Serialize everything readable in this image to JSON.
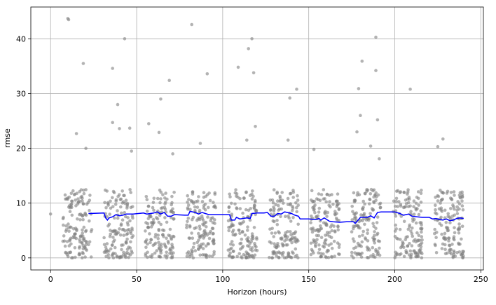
{
  "chart_data": {
    "type": "scatter",
    "title": "",
    "xlabel": "Horizon (hours)",
    "ylabel": "rmse",
    "xlim": [
      -11.5,
      251.5
    ],
    "ylim": [
      -2.2,
      45.8
    ],
    "xticks": [
      0,
      50,
      100,
      150,
      200,
      250
    ],
    "yticks": [
      0,
      10,
      20,
      30,
      40
    ],
    "grid": true,
    "point_color": "#808080",
    "line_color": "#0000ff",
    "outliers": [
      {
        "x": 0,
        "y": 8.0
      },
      {
        "x": 10,
        "y": 43.7
      },
      {
        "x": 10.5,
        "y": 43.5
      },
      {
        "x": 15,
        "y": 22.7
      },
      {
        "x": 19,
        "y": 35.5
      },
      {
        "x": 20.5,
        "y": 20.0
      },
      {
        "x": 36,
        "y": 34.6
      },
      {
        "x": 36,
        "y": 24.7
      },
      {
        "x": 39,
        "y": 28.0
      },
      {
        "x": 40,
        "y": 23.6
      },
      {
        "x": 43,
        "y": 40.0
      },
      {
        "x": 46,
        "y": 23.7
      },
      {
        "x": 47,
        "y": 19.5
      },
      {
        "x": 57,
        "y": 24.5
      },
      {
        "x": 63,
        "y": 22.9
      },
      {
        "x": 64,
        "y": 29.0
      },
      {
        "x": 69,
        "y": 32.4
      },
      {
        "x": 71,
        "y": 19.0
      },
      {
        "x": 82,
        "y": 42.6
      },
      {
        "x": 87,
        "y": 20.9
      },
      {
        "x": 91,
        "y": 33.6
      },
      {
        "x": 109,
        "y": 34.8
      },
      {
        "x": 114,
        "y": 21.5
      },
      {
        "x": 115,
        "y": 38.2
      },
      {
        "x": 117,
        "y": 40.0
      },
      {
        "x": 118,
        "y": 33.8
      },
      {
        "x": 119,
        "y": 24.0
      },
      {
        "x": 138,
        "y": 21.5
      },
      {
        "x": 139,
        "y": 29.2
      },
      {
        "x": 143,
        "y": 30.8
      },
      {
        "x": 153,
        "y": 19.8
      },
      {
        "x": 178,
        "y": 23.0
      },
      {
        "x": 179,
        "y": 30.9
      },
      {
        "x": 180,
        "y": 26.0
      },
      {
        "x": 181,
        "y": 35.9
      },
      {
        "x": 186,
        "y": 20.4
      },
      {
        "x": 189,
        "y": 40.3
      },
      {
        "x": 189,
        "y": 34.2
      },
      {
        "x": 190,
        "y": 25.2
      },
      {
        "x": 191,
        "y": 18.1
      },
      {
        "x": 209,
        "y": 30.8
      },
      {
        "x": 225,
        "y": 20.3
      },
      {
        "x": 228,
        "y": 21.7
      }
    ],
    "blocks": [
      {
        "x_start": 7,
        "x_end": 24,
        "y_max": 12.5,
        "count": 140
      },
      {
        "x_start": 31,
        "x_end": 48,
        "y_max": 12.5,
        "count": 140
      },
      {
        "x_start": 55,
        "x_end": 72,
        "y_max": 12.5,
        "count": 140
      },
      {
        "x_start": 79,
        "x_end": 96,
        "y_max": 12.5,
        "count": 140
      },
      {
        "x_start": 103,
        "x_end": 120,
        "y_max": 12.5,
        "count": 140
      },
      {
        "x_start": 127,
        "x_end": 144,
        "y_max": 12.5,
        "count": 140
      },
      {
        "x_start": 151,
        "x_end": 168,
        "y_max": 12.5,
        "count": 140
      },
      {
        "x_start": 175,
        "x_end": 192,
        "y_max": 12.5,
        "count": 140
      },
      {
        "x_start": 199,
        "x_end": 216,
        "y_max": 12.5,
        "count": 140
      },
      {
        "x_start": 223,
        "x_end": 240,
        "y_max": 12.5,
        "count": 140
      }
    ],
    "rmse_line": [
      [
        22,
        8.1
      ],
      [
        31,
        8.2
      ],
      [
        32,
        7.3
      ],
      [
        33,
        6.9
      ],
      [
        34,
        7.3
      ],
      [
        36,
        7.5
      ],
      [
        38,
        7.9
      ],
      [
        40,
        7.7
      ],
      [
        42,
        7.8
      ],
      [
        44,
        8.0
      ],
      [
        48,
        8.0
      ],
      [
        54,
        8.2
      ],
      [
        56,
        8.0
      ],
      [
        60,
        8.2
      ],
      [
        62,
        8.4
      ],
      [
        64,
        8.0
      ],
      [
        66,
        8.3
      ],
      [
        68,
        7.6
      ],
      [
        70,
        7.6
      ],
      [
        72,
        7.9
      ],
      [
        78,
        7.8
      ],
      [
        80,
        7.8
      ],
      [
        81,
        8.5
      ],
      [
        84,
        8.3
      ],
      [
        86,
        8.0
      ],
      [
        88,
        8.3
      ],
      [
        92,
        7.9
      ],
      [
        96,
        7.9
      ],
      [
        100,
        7.9
      ],
      [
        104,
        7.9
      ],
      [
        105,
        6.9
      ],
      [
        107,
        6.9
      ],
      [
        108,
        7.4
      ],
      [
        110,
        7.1
      ],
      [
        112,
        7.2
      ],
      [
        114,
        7.3
      ],
      [
        116,
        7.2
      ],
      [
        117,
        8.1
      ],
      [
        120,
        8.2
      ],
      [
        124,
        8.2
      ],
      [
        126,
        8.3
      ],
      [
        128,
        7.6
      ],
      [
        130,
        7.6
      ],
      [
        132,
        8.1
      ],
      [
        134,
        8.0
      ],
      [
        136,
        8.4
      ],
      [
        140,
        8.1
      ],
      [
        142,
        7.8
      ],
      [
        144,
        7.6
      ],
      [
        145,
        7.1
      ],
      [
        150,
        7.1
      ],
      [
        154,
        7.0
      ],
      [
        156,
        7.2
      ],
      [
        157,
        6.9
      ],
      [
        159,
        7.3
      ],
      [
        162,
        6.7
      ],
      [
        164,
        6.6
      ],
      [
        168,
        6.5
      ],
      [
        172,
        6.6
      ],
      [
        176,
        6.6
      ],
      [
        177,
        6.3
      ],
      [
        179,
        7.0
      ],
      [
        180,
        7.4
      ],
      [
        184,
        7.4
      ],
      [
        186,
        7.7
      ],
      [
        188,
        7.3
      ],
      [
        190,
        8.3
      ],
      [
        192,
        8.4
      ],
      [
        196,
        8.4
      ],
      [
        200,
        8.4
      ],
      [
        203,
        8.1
      ],
      [
        205,
        7.8
      ],
      [
        208,
        8.0
      ],
      [
        210,
        7.6
      ],
      [
        213,
        7.5
      ],
      [
        216,
        7.4
      ],
      [
        220,
        7.4
      ],
      [
        222,
        7.1
      ],
      [
        224,
        7.2
      ],
      [
        226,
        7.0
      ],
      [
        228,
        6.9
      ],
      [
        230,
        7.1
      ],
      [
        232,
        6.8
      ],
      [
        234,
        6.9
      ],
      [
        236,
        7.2
      ],
      [
        238,
        7.3
      ],
      [
        240,
        7.2
      ]
    ]
  }
}
